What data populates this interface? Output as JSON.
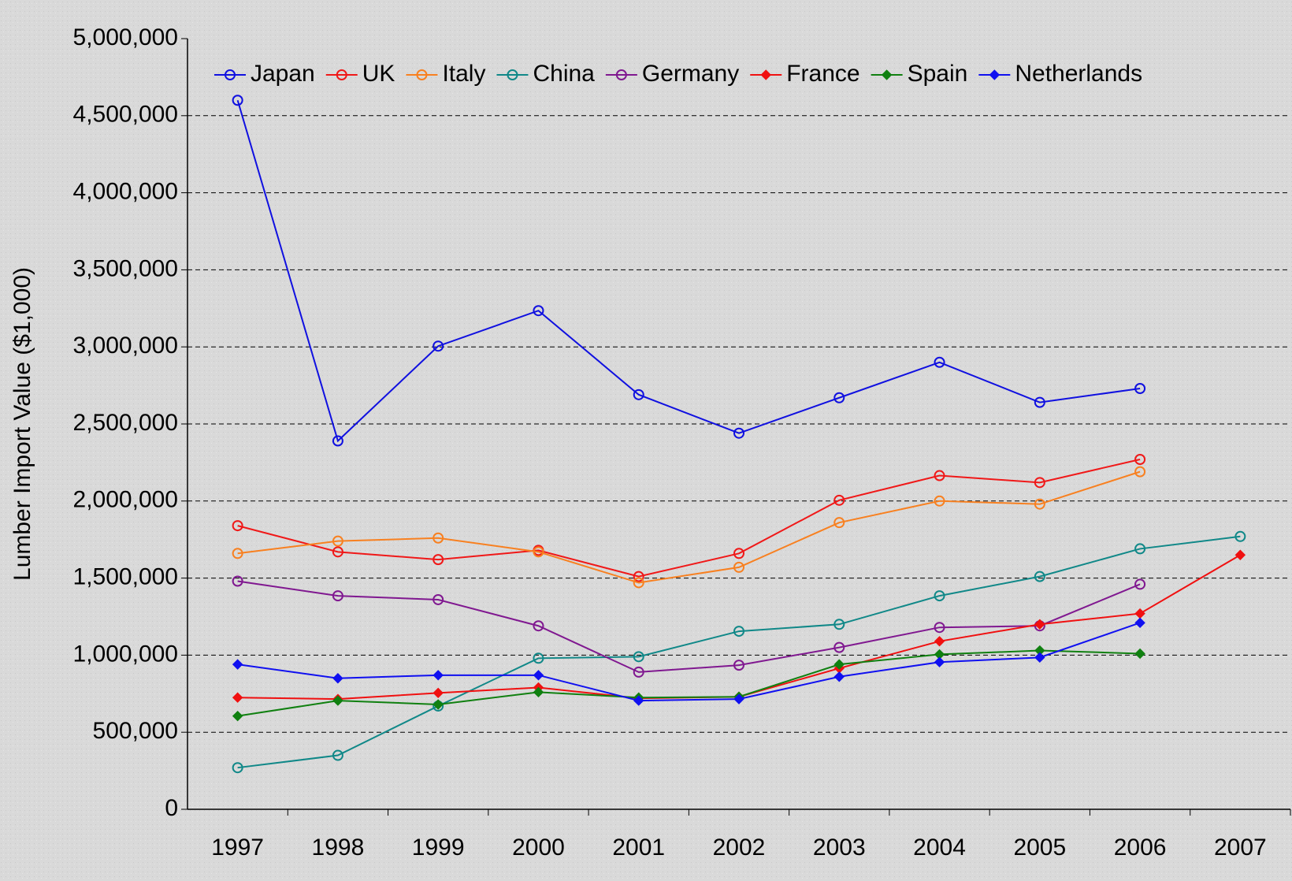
{
  "chart_data": {
    "type": "line",
    "y_label": "Lumber Import Value ($1,000)",
    "categories": [
      "1997",
      "1998",
      "1999",
      "2000",
      "2001",
      "2002",
      "2003",
      "2004",
      "2005",
      "2006",
      "2007"
    ],
    "series": [
      {
        "name": "Japan",
        "color": "#1010e0",
        "marker": "circle",
        "values": [
          4600000,
          2390000,
          3005000,
          3235000,
          2690000,
          2440000,
          2670000,
          2900000,
          2640000,
          2730000,
          null
        ]
      },
      {
        "name": "UK",
        "color": "#f01818",
        "marker": "circle",
        "values": [
          1840000,
          1670000,
          1620000,
          1680000,
          1510000,
          1660000,
          2005000,
          2165000,
          2120000,
          2270000,
          null
        ]
      },
      {
        "name": "Italy",
        "color": "#f88020",
        "marker": "circle",
        "values": [
          1660000,
          1740000,
          1760000,
          1670000,
          1470000,
          1570000,
          1860000,
          2000000,
          1980000,
          2190000,
          null
        ]
      },
      {
        "name": "China",
        "color": "#108888",
        "marker": "circle",
        "values": [
          270000,
          350000,
          670000,
          980000,
          990000,
          1155000,
          1200000,
          1385000,
          1510000,
          1690000,
          1770000
        ]
      },
      {
        "name": "Germany",
        "color": "#801890",
        "marker": "circle",
        "values": [
          1480000,
          1385000,
          1360000,
          1190000,
          890000,
          935000,
          1050000,
          1180000,
          1190000,
          1460000,
          null
        ]
      },
      {
        "name": "France",
        "color": "#f01010",
        "marker": "diamond",
        "values": [
          725000,
          715000,
          755000,
          790000,
          720000,
          730000,
          915000,
          1090000,
          1200000,
          1270000,
          1650000
        ]
      },
      {
        "name": "Spain",
        "color": "#108010",
        "marker": "diamond",
        "values": [
          605000,
          705000,
          680000,
          760000,
          725000,
          730000,
          940000,
          1005000,
          1030000,
          1010000,
          null
        ]
      },
      {
        "name": "Netherlands",
        "color": "#1010f0",
        "marker": "diamond",
        "values": [
          940000,
          850000,
          870000,
          870000,
          705000,
          715000,
          860000,
          955000,
          985000,
          1210000,
          null
        ]
      }
    ],
    "ylim": [
      0,
      5000000
    ],
    "yticks": [
      0,
      {
        "value": 500000,
        "label": "500,000"
      },
      {
        "value": 1000000,
        "label": "1,000,000"
      },
      {
        "value": 1500000,
        "label": "1,500,000"
      },
      {
        "value": 2000000,
        "label": "2,000,000"
      },
      {
        "value": 2500000,
        "label": "2,500,000"
      },
      {
        "value": 3000000,
        "label": "3,000,000"
      },
      {
        "value": 3500000,
        "label": "3,500,000"
      },
      {
        "value": 4000000,
        "label": "4,000,000"
      },
      {
        "value": 4500000,
        "label": "4,500,000"
      },
      {
        "value": 5000000,
        "label": "5,000,000"
      }
    ],
    "grid": true
  }
}
